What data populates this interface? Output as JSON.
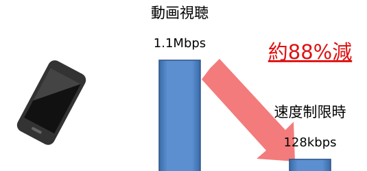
{
  "chart_data": {
    "type": "bar",
    "categories": [
      "動画視聴",
      "速度制限時"
    ],
    "values": [
      1100,
      128
    ],
    "value_labels": [
      "1.1Mbps",
      "128kbps"
    ],
    "color": "#4f81bd",
    "annotation": "約88%減"
  }
}
